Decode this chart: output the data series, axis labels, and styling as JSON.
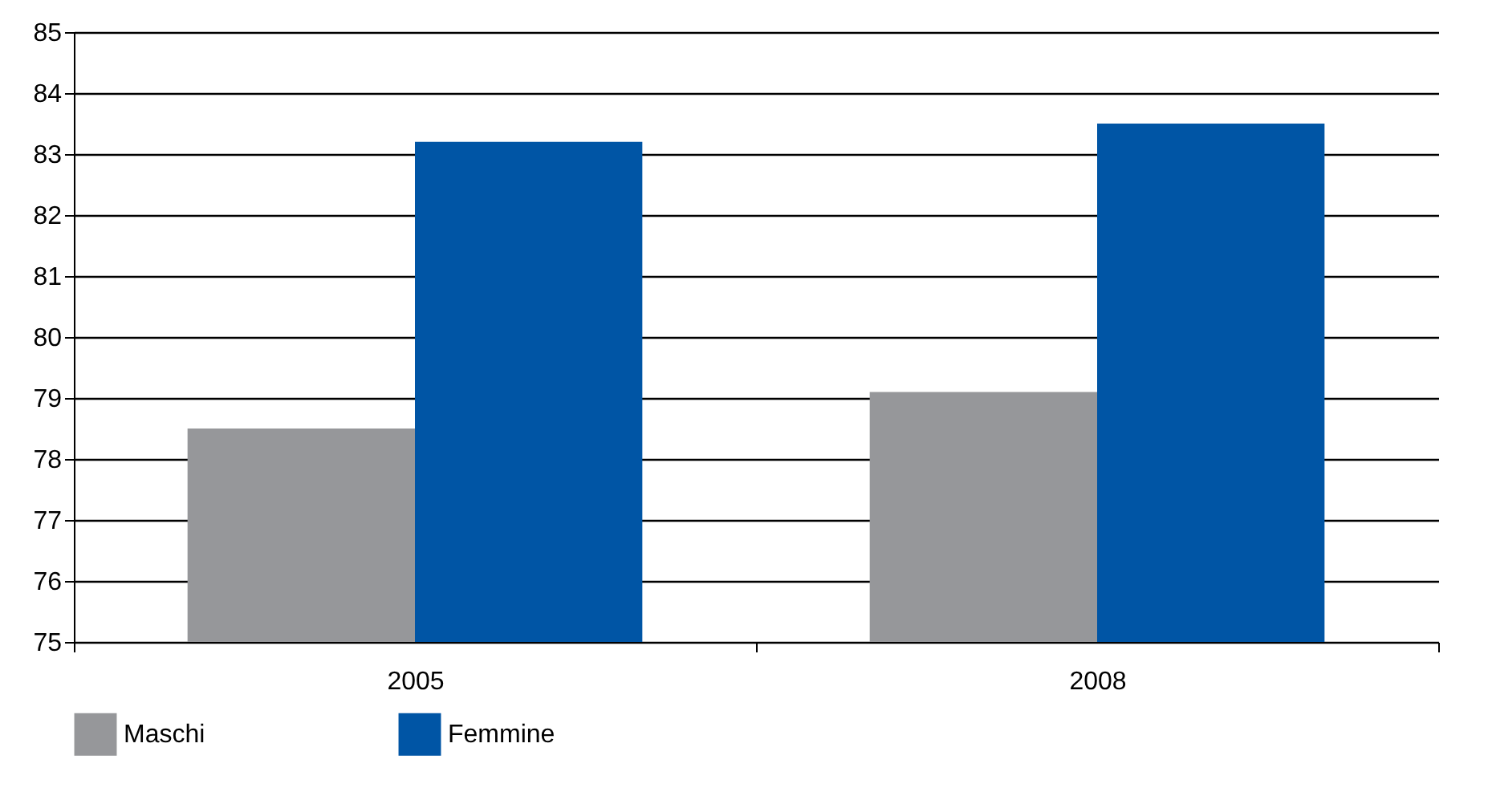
{
  "chart_data": {
    "type": "bar",
    "categories": [
      "2005",
      "2008"
    ],
    "series": [
      {
        "name": "Maschi",
        "color": "#96979a",
        "values": [
          78.5,
          79.1
        ]
      },
      {
        "name": "Femmine",
        "color": "#0055a5",
        "values": [
          83.2,
          83.5
        ]
      }
    ],
    "ylim": [
      75,
      85
    ],
    "yticks": [
      75,
      76,
      77,
      78,
      79,
      80,
      81,
      82,
      83,
      84,
      85
    ],
    "grid": "y",
    "legend": "bottom"
  }
}
